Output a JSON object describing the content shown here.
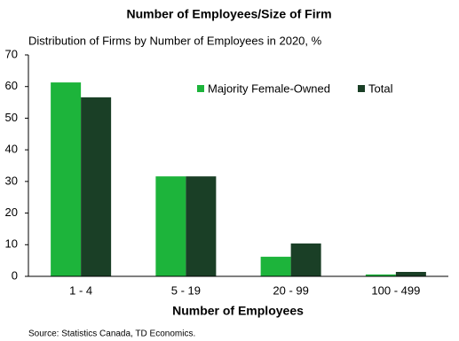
{
  "chart_data": {
    "type": "bar",
    "title": "Number of Employees/Size  of Firm",
    "subtitle": "Distribution of Firms by Number of Employees in 2020, %",
    "x_label": "Number of Employees",
    "source": "Source:  Statistics Canada,  TD Economics.",
    "categories": [
      "1 - 4",
      "5 - 19",
      "20 - 99",
      "100 - 499"
    ],
    "series": [
      {
        "name": "Majority Female-Owned",
        "color": "#1db43b",
        "values": [
          61.3,
          31.6,
          6.2,
          0.6
        ]
      },
      {
        "name": "Total",
        "color": "#1a3f26",
        "values": [
          56.6,
          31.6,
          10.4,
          1.4
        ]
      }
    ],
    "ylim": [
      0,
      70
    ],
    "yticks": [
      0,
      10,
      20,
      30,
      40,
      50,
      60,
      70
    ],
    "grid": false,
    "legend": "top-right"
  }
}
